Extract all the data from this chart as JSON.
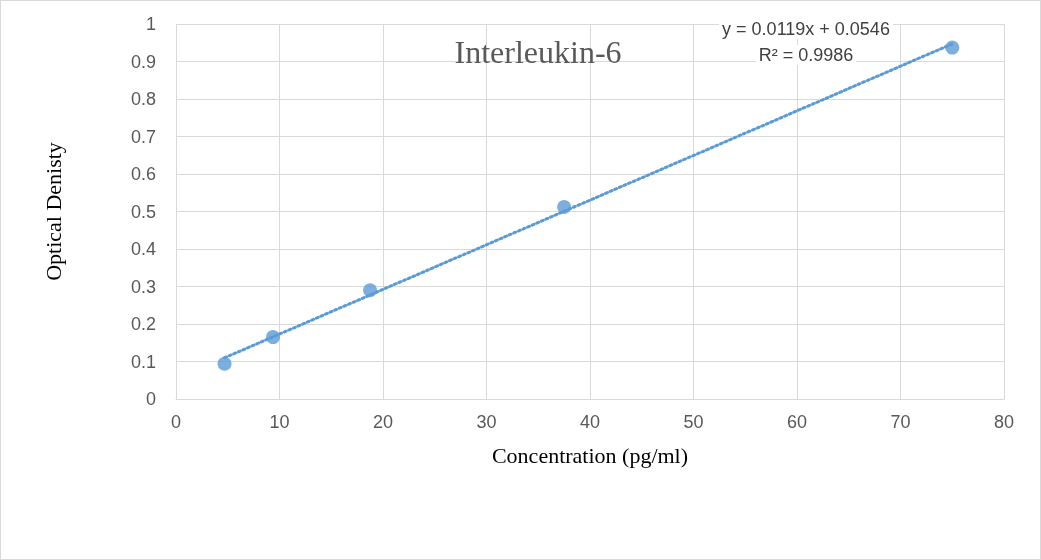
{
  "chart_data": {
    "type": "scatter",
    "title": "Interleukin-6",
    "xlabel": "Concentration (pg/ml)",
    "ylabel": "Optical Denisty",
    "annotations": [
      "y = 0.0119x + 0.0546",
      "R² = 0.9986"
    ],
    "xlim": [
      0,
      80
    ],
    "xticks": [
      0,
      10,
      20,
      30,
      40,
      50,
      60,
      70,
      80
    ],
    "ylim": [
      0,
      1
    ],
    "yticks": [
      0,
      0.1,
      0.2,
      0.3,
      0.4,
      0.5,
      0.6,
      0.7,
      0.8,
      0.9,
      1
    ],
    "grid": true,
    "series": [
      {
        "marker": "circle",
        "color": "#5b9bd5",
        "x": [
          4.69,
          9.375,
          18.75,
          37.5,
          75
        ],
        "values": [
          0.094,
          0.165,
          0.29,
          0.512,
          0.937
        ]
      },
      {
        "type": "line",
        "color": "#5b9bd5",
        "line_style": "dotted",
        "marker": "none",
        "x": [
          4.69,
          75
        ],
        "values": [
          0.11,
          0.947
        ]
      }
    ]
  }
}
